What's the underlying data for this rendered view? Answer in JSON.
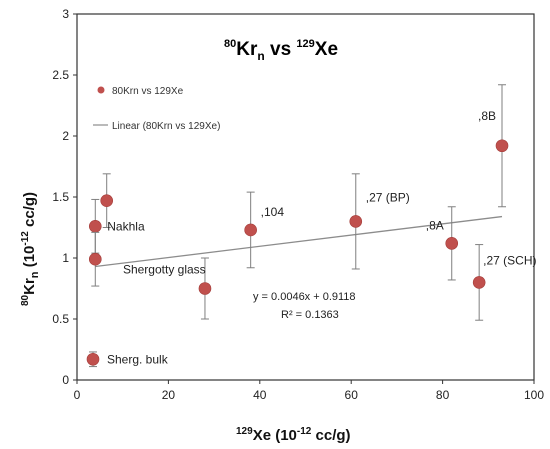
{
  "chart_data": {
    "type": "scatter",
    "title_main": "Kr",
    "title_sup1": "80",
    "title_sub": "n",
    "title_vs": " vs ",
    "title_sup2": "129",
    "title_end": "Xe",
    "xlabel_sup": "129",
    "xlabel": "Xe (10",
    "xlabel_exp": "-12",
    "xlabel_end": " cc/g)",
    "ylabel_sup": "80",
    "ylabel": "Kr",
    "ylabel_sub": "n",
    "ylabel_mid": " (10",
    "ylabel_exp": "-12",
    "ylabel_end": " cc/g)",
    "xlim": [
      0,
      100
    ],
    "ylim": [
      0,
      3
    ],
    "x_ticks": [
      0,
      20,
      40,
      60,
      80,
      100
    ],
    "y_ticks": [
      0,
      0.5,
      1,
      1.5,
      2,
      2.5,
      3
    ],
    "x_tick_labels": [
      "0",
      "20",
      "40",
      "60",
      "80",
      "100"
    ],
    "y_tick_labels": [
      "0",
      "0.5",
      "1",
      "1.5",
      "2",
      "2.5",
      "3"
    ],
    "marker_color": "#c0504d",
    "errorbar_color": "#7f7f7f",
    "trend_color": "#8c8c8c",
    "legend": {
      "series_label": "80Krn vs 129Xe",
      "trend_label": "Linear (80Krn vs 129Xe)"
    },
    "equation": "y = 0.0046x + 0.9118",
    "r_squared": "R² = 0.1363",
    "trendline": {
      "slope": 0.0046,
      "intercept": 0.9118
    },
    "points": [
      {
        "x": 3.5,
        "y": 0.17,
        "err": 0.06,
        "label": "Sherg. bulk"
      },
      {
        "x": 4,
        "y": 1.26,
        "err": 0.22,
        "label": "Nakhla"
      },
      {
        "x": 4,
        "y": 0.99,
        "err": 0.22,
        "label": ""
      },
      {
        "x": 6.5,
        "y": 1.47,
        "err": 0.22,
        "label": ""
      },
      {
        "x": 28,
        "y": 0.75,
        "err": 0.25,
        "label": "Shergotty glass"
      },
      {
        "x": 38,
        "y": 1.23,
        "err": 0.31,
        "label": ",104"
      },
      {
        "x": 61,
        "y": 1.3,
        "err": 0.39,
        "label": ",27 (BP)"
      },
      {
        "x": 82,
        "y": 1.12,
        "err": 0.3,
        "label": ",8A"
      },
      {
        "x": 88,
        "y": 0.8,
        "err": 0.31,
        "label": ",27 (SCH)"
      },
      {
        "x": 93,
        "y": 1.92,
        "err": 0.5,
        "label": ",8B"
      }
    ]
  }
}
